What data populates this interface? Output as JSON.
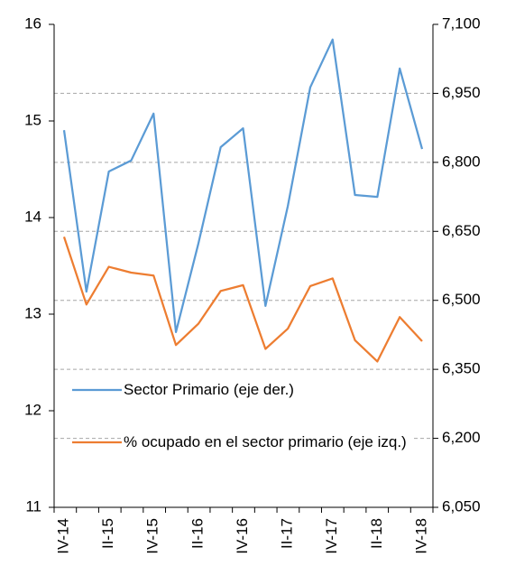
{
  "chart_data": {
    "type": "line",
    "categories": [
      "IV-14",
      null,
      "II-15",
      null,
      "IV-15",
      null,
      "II-16",
      null,
      "IV-16",
      null,
      "II-17",
      null,
      "IV-17",
      null,
      "II-18",
      null,
      "IV-18"
    ],
    "series": [
      {
        "name": "Sector Primario (eje der.)",
        "color": "#5b9bd5",
        "axis": "y2",
        "values": [
          6870,
          6519,
          6780,
          6804,
          6906,
          6431,
          6623,
          6833,
          6874,
          6488,
          6705,
          6963,
          7067,
          6729,
          6725,
          7004,
          6829
        ]
      },
      {
        "name": "% ocupado en el sector primario (eje izq.)",
        "color": "#ed7d31",
        "values": [
          13.8,
          13.1,
          13.49,
          13.43,
          13.4,
          12.68,
          12.9,
          13.24,
          13.3,
          12.64,
          12.85,
          13.29,
          13.37,
          12.73,
          12.51,
          12.97,
          12.72
        ]
      }
    ],
    "ylim": [
      11,
      16
    ],
    "yticks": [
      11,
      12,
      13,
      14,
      15,
      16
    ],
    "y2lim": [
      6050,
      7100
    ],
    "y2ticks": [
      {
        "value": 6050,
        "label": "6,050"
      },
      {
        "value": 6200,
        "label": "6,200"
      },
      {
        "value": 6350,
        "label": "6,350"
      },
      {
        "value": 6500,
        "label": "6,500"
      },
      {
        "value": 6650,
        "label": "6,650"
      },
      {
        "value": 6800,
        "label": "6,800"
      },
      {
        "value": 6950,
        "label": "6,950"
      },
      {
        "value": 7100,
        "label": "7,100"
      }
    ],
    "grid": true
  }
}
